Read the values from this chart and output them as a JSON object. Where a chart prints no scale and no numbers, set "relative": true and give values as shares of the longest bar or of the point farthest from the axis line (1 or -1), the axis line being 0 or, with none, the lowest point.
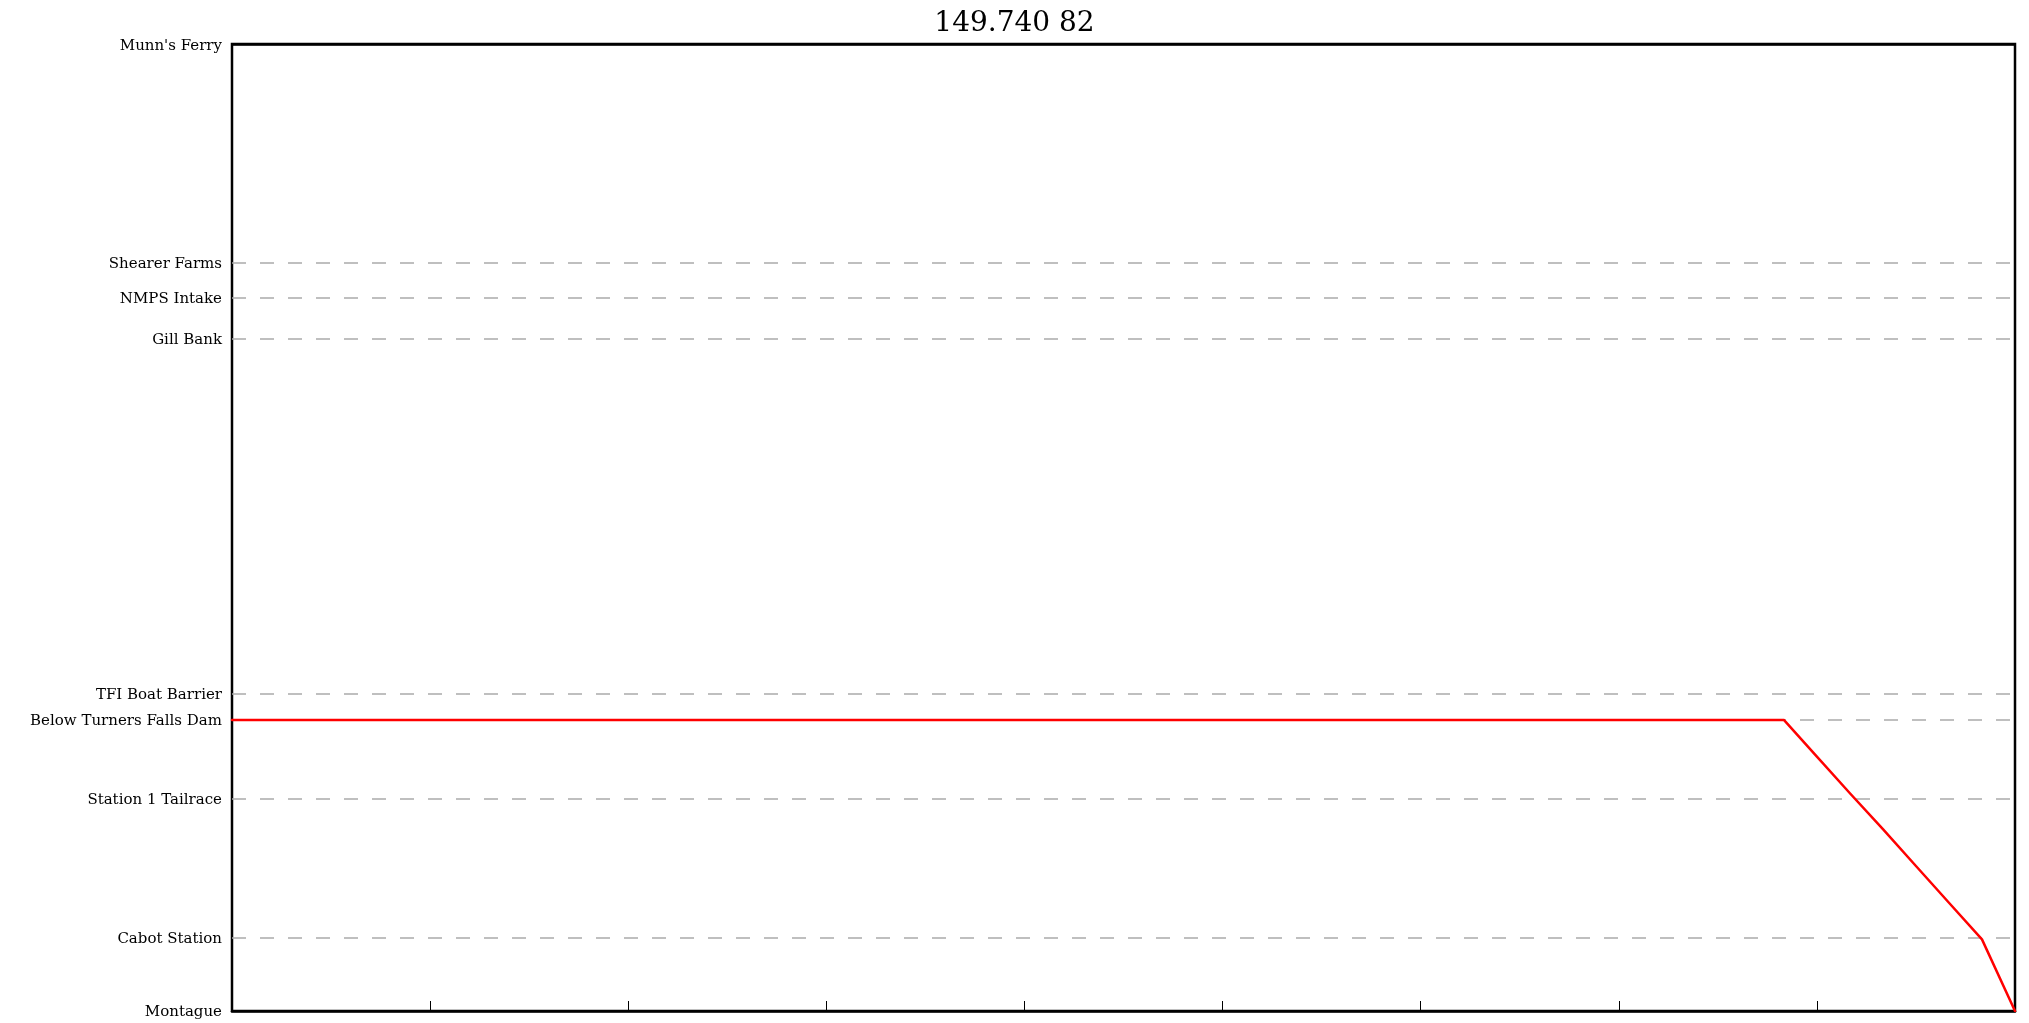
{
  "chart_data": {
    "type": "line",
    "title": "149.740 82",
    "relative": true,
    "categories": [
      null,
      null,
      null,
      null,
      null,
      null,
      null,
      null,
      null,
      null,
      null,
      null,
      null,
      null,
      null,
      null,
      null,
      null,
      null,
      null,
      null,
      null,
      null,
      null,
      null,
      null,
      null,
      null,
      null,
      null,
      null,
      null,
      null,
      null,
      null,
      null,
      null,
      null,
      null,
      null,
      null,
      null,
      null,
      null,
      null,
      null,
      null,
      null,
      null,
      null,
      null,
      null,
      null,
      null,
      null
    ],
    "series": [
      {
        "color": "#ff0000",
        "values": [
          1,
          1,
          1,
          1,
          1,
          1,
          1,
          1,
          1,
          1,
          1,
          1,
          1,
          1,
          1,
          1,
          1,
          1,
          1,
          1,
          1,
          1,
          1,
          1,
          1,
          1,
          1,
          1,
          1,
          1,
          1,
          1,
          1,
          1,
          1,
          1,
          1,
          1,
          1,
          1,
          1,
          1,
          1,
          1,
          1,
          1,
          1,
          1,
          0.874,
          0.748,
          0.625,
          0.498,
          0.372,
          0.246,
          0
        ]
      }
    ],
    "ref_lines": [
      {
        "axis": "y",
        "value": 0,
        "label": "Montague",
        "color": "#000000",
        "line_style": "solid"
      },
      {
        "axis": "y",
        "value": 0.246,
        "label": "Cabot Station",
        "color": "#aaaaaa",
        "line_style": "dashed"
      },
      {
        "axis": "y",
        "value": 0.728,
        "label": "Station 1 Tailrace",
        "color": "#aaaaaa",
        "line_style": "dashed"
      },
      {
        "axis": "y",
        "value": 1,
        "label": "Below Turners Falls Dam",
        "color": "#aaaaaa",
        "line_style": "dashed"
      },
      {
        "axis": "y",
        "value": 1.093,
        "label": "TFI Boat Barrier",
        "color": "#aaaaaa",
        "line_style": "dashed"
      },
      {
        "axis": "y",
        "value": 2.306,
        "label": "Gill Bank",
        "color": "#aaaaaa",
        "line_style": "dashed"
      },
      {
        "axis": "y",
        "value": 2.452,
        "label": "NMPS Intake",
        "color": "#aaaaaa",
        "line_style": "dashed"
      },
      {
        "axis": "y",
        "value": 2.568,
        "label": "Shearer Farms",
        "color": "#aaaaaa",
        "line_style": "dashed"
      },
      {
        "axis": "y",
        "value": 3.322,
        "label": "Munn's Ferry",
        "color": "#000000",
        "line_style": "solid"
      }
    ],
    "marker": "none",
    "line_style": "solid"
  }
}
